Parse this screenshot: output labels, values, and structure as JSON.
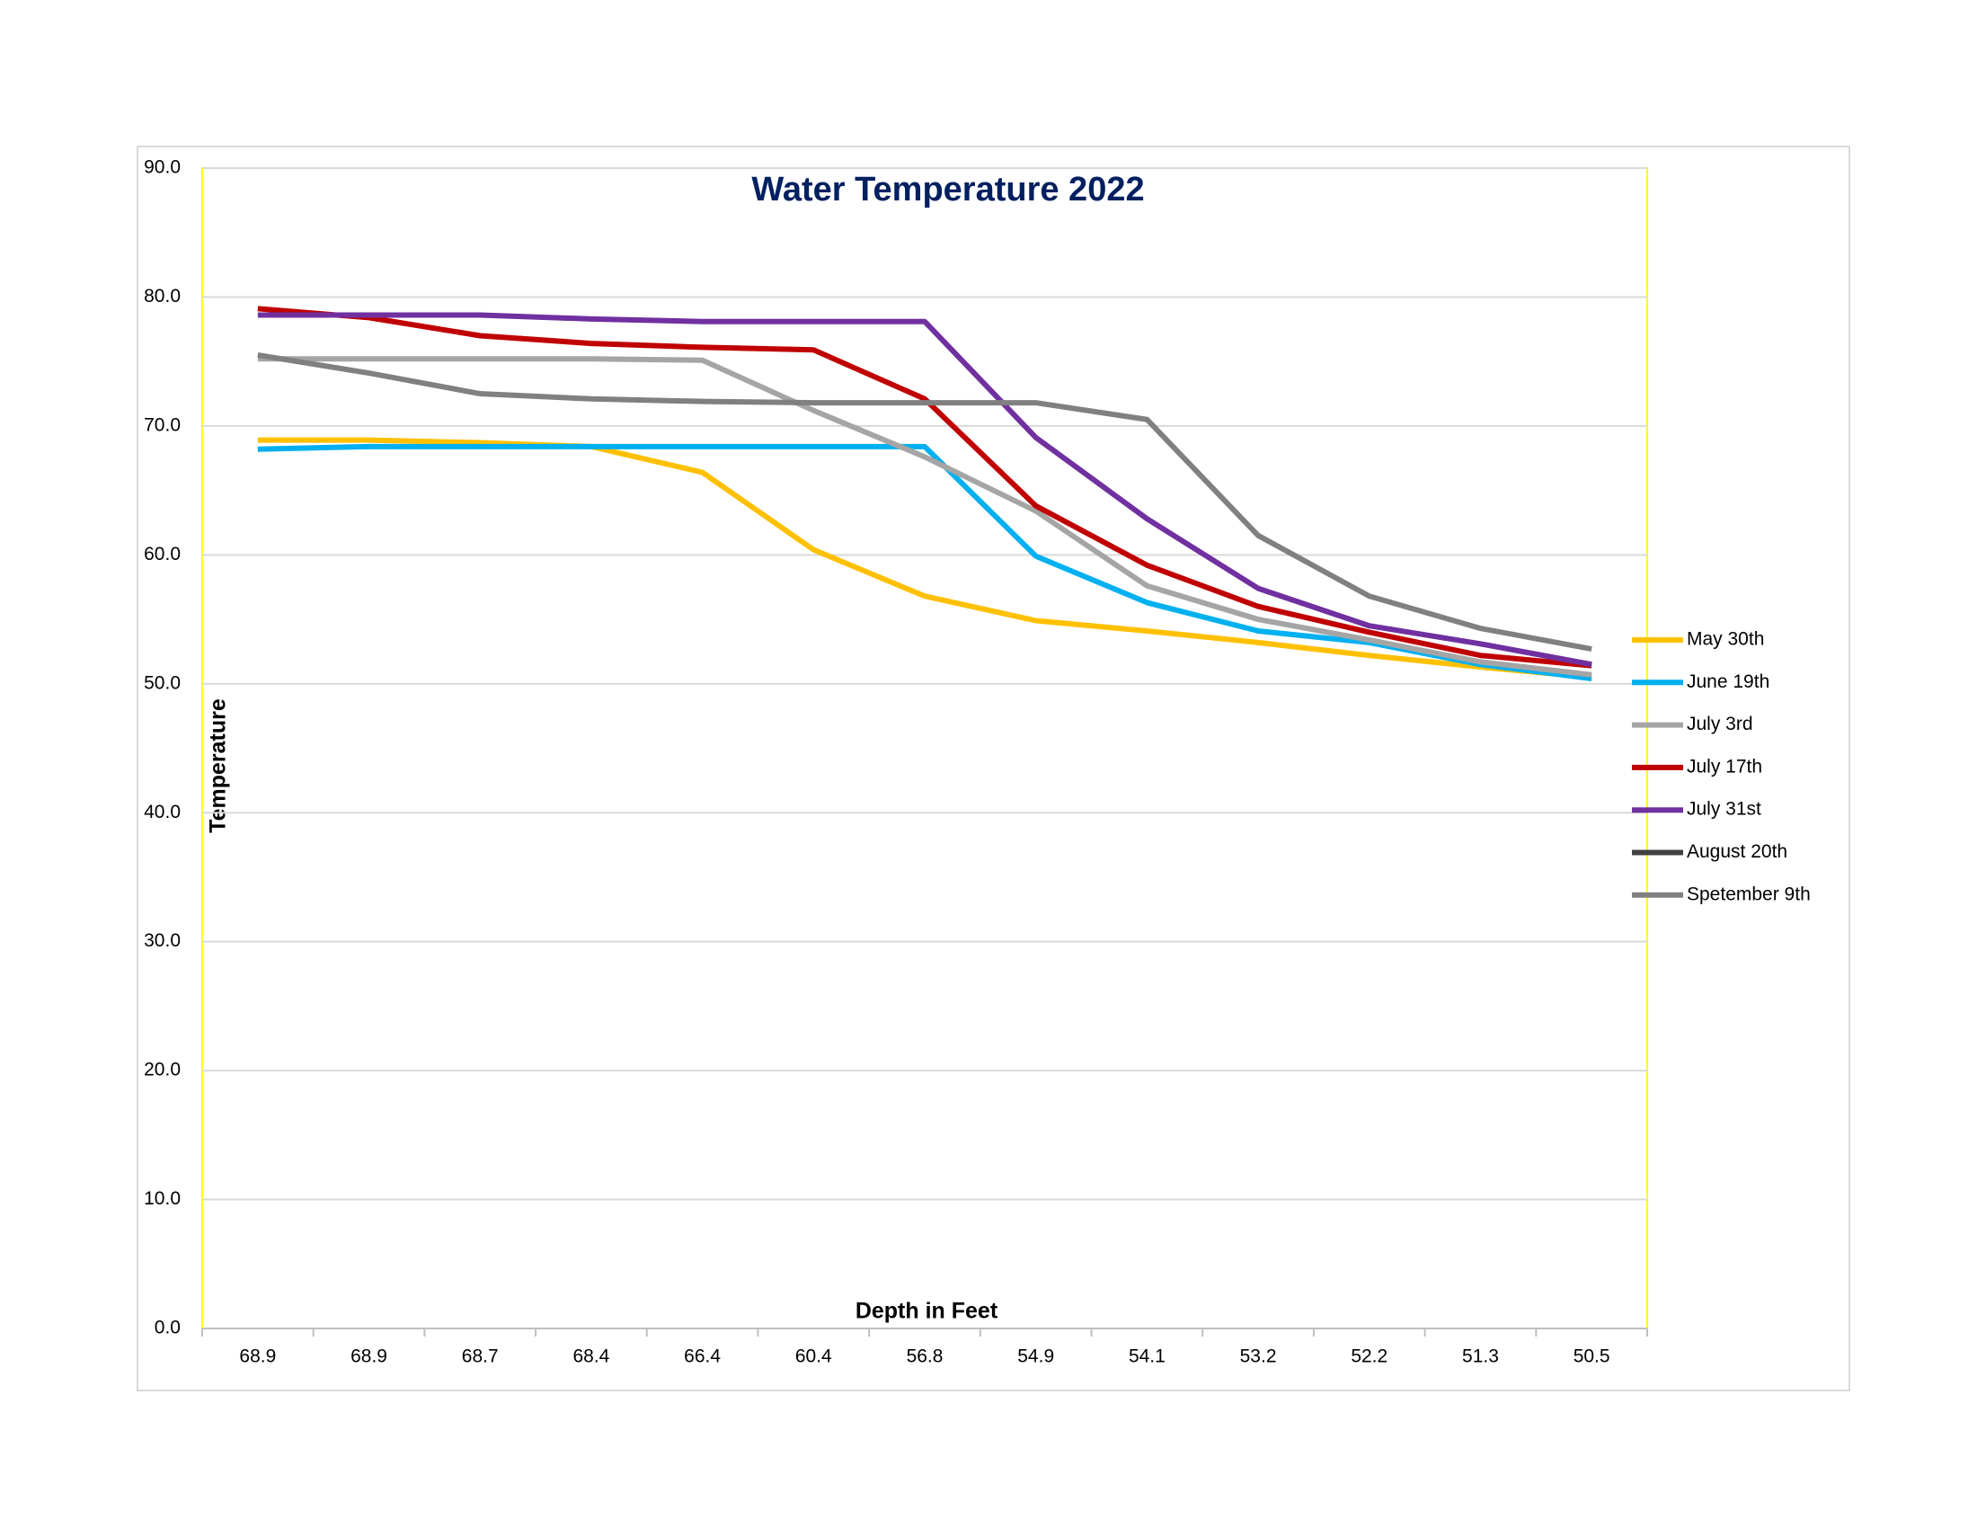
{
  "chart_data": {
    "type": "line",
    "title": "Water Temperature 2022",
    "x_label": "Depth in Feet",
    "y_label": "Temperature",
    "categories": [
      "68.9",
      "68.9",
      "68.7",
      "68.4",
      "66.4",
      "60.4",
      "56.8",
      "54.9",
      "54.1",
      "53.2",
      "52.2",
      "51.3",
      "50.5"
    ],
    "series": [
      {
        "name": "May 30th",
        "color": "#FFC000",
        "values": [
          68.9,
          68.9,
          68.7,
          68.4,
          66.4,
          60.4,
          56.8,
          54.9,
          54.1,
          53.2,
          52.2,
          51.3,
          50.5
        ]
      },
      {
        "name": "June 19th",
        "color": "#00B0F0",
        "values": [
          68.2,
          68.4,
          68.4,
          68.4,
          68.4,
          68.4,
          68.4,
          59.9,
          56.3,
          54.1,
          53.2,
          51.5,
          50.4
        ]
      },
      {
        "name": "July 3rd",
        "color": "#A5A5A5",
        "values": [
          75.2,
          75.2,
          75.2,
          75.2,
          75.1,
          71.2,
          67.6,
          63.4,
          57.6,
          55.0,
          53.4,
          51.7,
          50.7
        ]
      },
      {
        "name": "July 17th",
        "color": "#C00000",
        "values": [
          79.1,
          78.4,
          77.0,
          76.4,
          76.1,
          75.9,
          72.1,
          63.8,
          59.2,
          56.0,
          54.0,
          52.2,
          51.4
        ]
      },
      {
        "name": "July 31st",
        "color": "#7030A0",
        "values": [
          78.6,
          78.6,
          78.6,
          78.3,
          78.1,
          78.1,
          78.1,
          69.1,
          62.8,
          57.4,
          54.5,
          53.1,
          51.5
        ]
      },
      {
        "name": "August 20th",
        "color": "#404040",
        "values": [
          null,
          null,
          null,
          null,
          null,
          null,
          null,
          null,
          null,
          null,
          null,
          null,
          null
        ]
      },
      {
        "name": "Spetember 9th",
        "color": "#808080",
        "values": [
          75.5,
          74.1,
          72.5,
          72.1,
          71.9,
          71.8,
          71.8,
          71.8,
          70.5,
          61.5,
          56.8,
          54.3,
          52.7
        ]
      }
    ],
    "ylim": [
      0,
      90
    ],
    "yticks": [
      {
        "value": 0,
        "label": "0.0"
      },
      {
        "value": 10,
        "label": "10.0"
      },
      {
        "value": 20,
        "label": "20.0"
      },
      {
        "value": 30,
        "label": "30.0"
      },
      {
        "value": 40,
        "label": "40.0"
      },
      {
        "value": 50,
        "label": "50.0"
      },
      {
        "value": 60,
        "label": "60.0"
      },
      {
        "value": 70,
        "label": "70.0"
      },
      {
        "value": 80,
        "label": "80.0"
      },
      {
        "value": 90,
        "label": "90.0"
      }
    ],
    "grid": true,
    "legend": "right"
  }
}
